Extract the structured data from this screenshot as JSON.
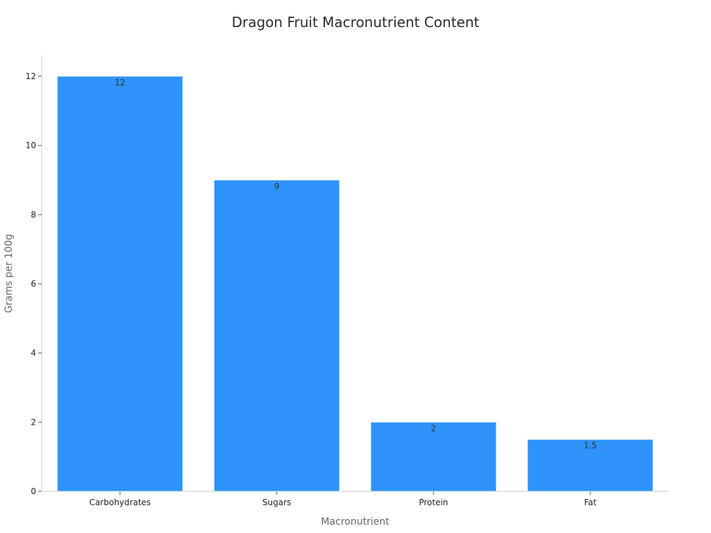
{
  "chart_data": {
    "type": "bar",
    "title": "Dragon Fruit Macronutrient Content",
    "xlabel": "Macronutrient",
    "ylabel": "Grams per 100g",
    "categories": [
      "Carbohydrates",
      "Sugars",
      "Protein",
      "Fat"
    ],
    "values": [
      12,
      9,
      2,
      1.5
    ],
    "data_labels": [
      "12",
      "9",
      "2",
      "1.5"
    ],
    "ylim": [
      0,
      12.6
    ],
    "yticks": [
      0,
      2,
      4,
      6,
      8,
      10,
      12
    ],
    "grid": false,
    "bar_color": "#2e93fa",
    "bar_edge_color": "#dfe7f3"
  }
}
